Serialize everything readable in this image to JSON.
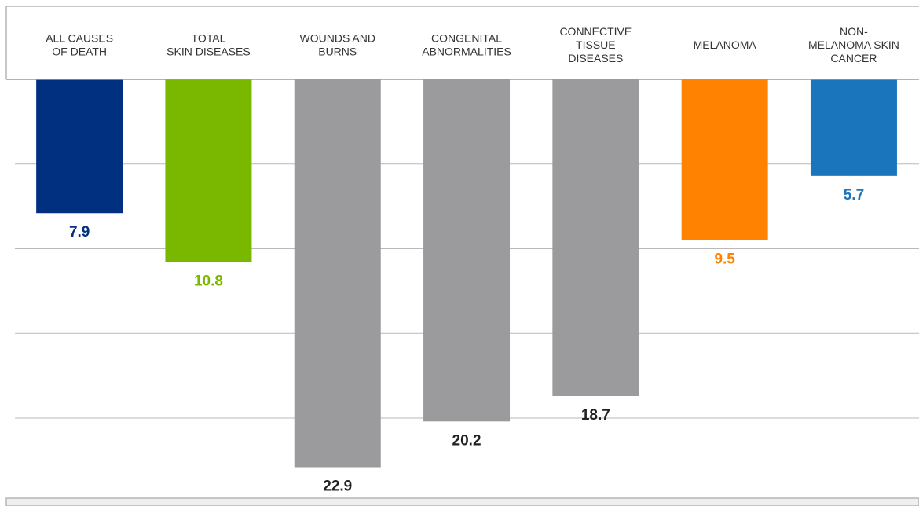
{
  "chart_data": {
    "type": "bar",
    "orientation": "downward",
    "title": "",
    "xlabel": "",
    "ylabel": "",
    "categories": [
      [
        "ALL CAUSES",
        "OF DEATH"
      ],
      [
        "TOTAL",
        "SKIN DISEASES"
      ],
      [
        "WOUNDS AND",
        "BURNS"
      ],
      [
        "CONGENITAL",
        "ABNORMALITIES"
      ],
      [
        "CONNECTIVE",
        "TISSUE",
        "DISEASES"
      ],
      [
        "MELANOMA"
      ],
      [
        "NON-",
        "MELANOMA SKIN",
        "CANCER"
      ]
    ],
    "values": [
      7.9,
      10.8,
      22.9,
      20.2,
      18.7,
      9.5,
      5.7
    ],
    "value_labels": [
      "7.9",
      "10.8",
      "22.9",
      "20.2",
      "18.7",
      "9.5",
      "5.7"
    ],
    "colors": [
      "#00307f",
      "#7ab800",
      "#9b9b9d",
      "#9b9b9d",
      "#9b9b9d",
      "#ff8300",
      "#1b75bc"
    ],
    "label_colors": [
      "#00307f",
      "#7ab800",
      "#222222",
      "#222222",
      "#222222",
      "#ff8300",
      "#1b75bc"
    ],
    "ylim": [
      0,
      25
    ],
    "grid": true,
    "legend": "none"
  }
}
